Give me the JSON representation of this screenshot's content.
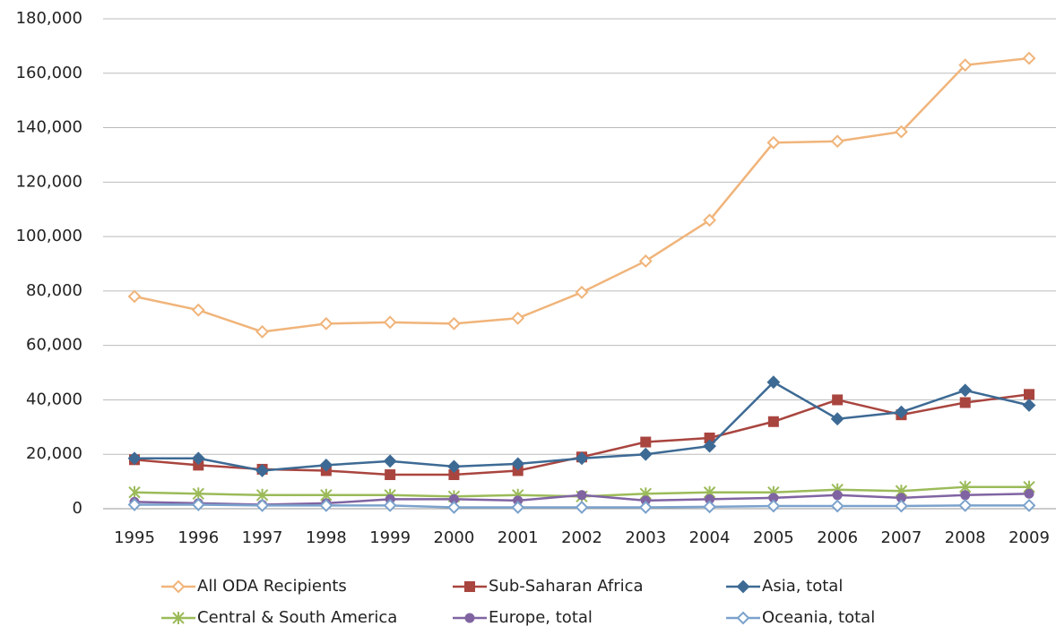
{
  "chart_data": {
    "type": "line",
    "categories": [
      "1995",
      "1996",
      "1997",
      "1998",
      "1999",
      "2000",
      "2001",
      "2002",
      "2003",
      "2004",
      "2005",
      "2006",
      "2007",
      "2008",
      "2009"
    ],
    "series": [
      {
        "name": "All ODA Recipients",
        "color": "#f0b47a",
        "marker": "diamond-open",
        "values": [
          78000,
          73000,
          65000,
          68000,
          68500,
          68000,
          70000,
          79500,
          91000,
          106000,
          134500,
          135000,
          138500,
          163000,
          165500
        ]
      },
      {
        "name": "Sub-Saharan Africa",
        "color": "#a9453f",
        "marker": "square",
        "values": [
          18000,
          16000,
          14500,
          14000,
          12500,
          12500,
          14000,
          19000,
          24500,
          26000,
          32000,
          40000,
          34500,
          39000,
          42000
        ]
      },
      {
        "name": "Asia, total",
        "color": "#3d6a94",
        "marker": "diamond",
        "values": [
          18500,
          18500,
          14000,
          16000,
          17500,
          15500,
          16500,
          18500,
          20000,
          23000,
          46500,
          33000,
          35500,
          43500,
          38000
        ]
      },
      {
        "name": "Central & South America",
        "color": "#9bbb59",
        "marker": "star",
        "values": [
          6000,
          5500,
          5000,
          5000,
          5000,
          4500,
          5000,
          4500,
          5500,
          6000,
          6000,
          7000,
          6500,
          8000,
          8000
        ]
      },
      {
        "name": "Europe, total",
        "color": "#8064a2",
        "marker": "circle",
        "values": [
          2500,
          2000,
          1500,
          2000,
          3500,
          3500,
          3000,
          5000,
          3000,
          3500,
          4000,
          5000,
          4000,
          5000,
          5500
        ]
      },
      {
        "name": "Oceania, total",
        "color": "#7ba2cc",
        "marker": "diamond-open",
        "values": [
          1500,
          1500,
          1200,
          1200,
          1200,
          500,
          500,
          500,
          500,
          700,
          1000,
          1000,
          1000,
          1200,
          1200
        ]
      }
    ],
    "ylim": [
      0,
      180000
    ],
    "yticks": [
      0,
      {
        "value": 20000,
        "label": "20,000"
      },
      {
        "value": 40000,
        "label": "40,000"
      },
      {
        "value": 60000,
        "label": "60,000"
      },
      {
        "value": 80000,
        "label": "80,000"
      },
      {
        "value": 100000,
        "label": "100,000"
      },
      {
        "value": 120000,
        "label": "120,000"
      },
      {
        "value": 140000,
        "label": "140,000"
      },
      {
        "value": 160000,
        "label": "160,000"
      },
      {
        "value": 180000,
        "label": "180,000"
      }
    ],
    "grid": true,
    "legend": "bottom"
  }
}
